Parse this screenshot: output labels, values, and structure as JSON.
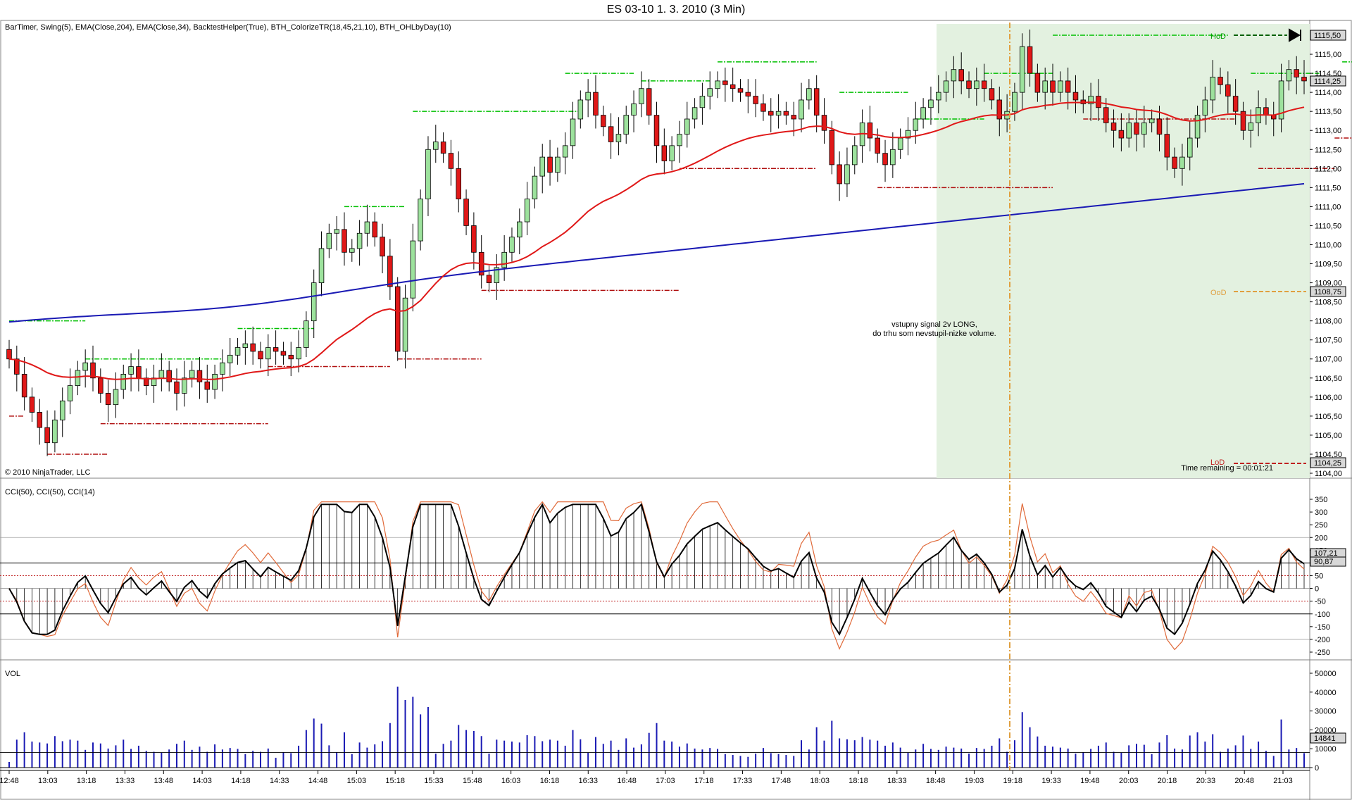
{
  "window": {
    "title": "ES 03-10  1. 3. 2010 (3 Min)"
  },
  "price_pane": {
    "indicators_label": "BarTimer, Swing(5), EMA(Close,204), EMA(Close,34), BacktestHelper(True), BTH_ColorizeTR(18,45,21,10), BTH_OHLbyDay(10)",
    "copyright": "© 2010 NinjaTrader, LLC",
    "annotation_line1": "vstupny signal 2v LONG,",
    "annotation_line2": "do trhu som nevstupil-nizke volume.",
    "time_remaining": "Time remaining = 00:01:21",
    "hod_label": "HoD",
    "ood_label": "OoD",
    "lod_label": "LoD",
    "last_price_box": "1114,25",
    "hod_price_box": "1115,50",
    "ood_price_box": "1108,75",
    "lod_price_box": "1104,25"
  },
  "cci_pane": {
    "label": "CCI(50), CCI(50), CCI(14)",
    "value_box_1": "107,21",
    "value_box_2": "90,87"
  },
  "vol_pane": {
    "label": "VOL",
    "value_box": "14841"
  },
  "colors": {
    "up_candle": "#9de29d",
    "down_candle": "#e01818",
    "ema204": "#1a1ab4",
    "ema34": "#e01818",
    "swing_high": "#00c000",
    "swing_low": "#b01010",
    "cci_main": "#000000",
    "cci_fast": "#e06a3a",
    "volume": "#1a1ab4",
    "session_shade": "#e3f1e0",
    "signal_line": "#e0a040"
  },
  "chart_data": {
    "type": "candlestick",
    "x_tick_labels": [
      "12:48",
      "13:03",
      "13:18",
      "13:33",
      "13:48",
      "14:03",
      "14:18",
      "14:33",
      "14:48",
      "15:03",
      "15:18",
      "15:33",
      "15:48",
      "16:03",
      "16:18",
      "16:33",
      "16:48",
      "17:03",
      "17:18",
      "17:33",
      "17:48",
      "18:03",
      "18:18",
      "18:33",
      "18:48",
      "19:03",
      "19:18",
      "19:33",
      "19:48",
      "20:03",
      "20:18",
      "20:33",
      "20:48",
      "21:03"
    ],
    "price_axis": {
      "min": 1104.0,
      "max": 1115.5,
      "ticks": [
        "1104,00",
        "1104,50",
        "1105,00",
        "1105,50",
        "1106,00",
        "1106,50",
        "1107,00",
        "1107,50",
        "1108,00",
        "1108,50",
        "1109,00",
        "1109,50",
        "1110,00",
        "1110,50",
        "1111,00",
        "1111,50",
        "1112,00",
        "1112,50",
        "1113,00",
        "1113,50",
        "1114,00",
        "1114,50",
        "1115,00"
      ]
    },
    "cci_axis": {
      "min": -250,
      "max": 350,
      "ticks": [
        "350",
        "300",
        "250",
        "200",
        "150",
        "100",
        "50",
        "0",
        "-50",
        "-100",
        "-150",
        "-200",
        "-250"
      ]
    },
    "vol_axis": {
      "min": 0,
      "max": 50000,
      "ticks": [
        "50000",
        "40000",
        "30000",
        "20000",
        "10000",
        "0"
      ]
    },
    "close": [
      1107.0,
      1106.6,
      1106.0,
      1105.6,
      1105.2,
      1104.8,
      1105.4,
      1105.9,
      1106.3,
      1106.7,
      1106.9,
      1106.5,
      1106.1,
      1105.8,
      1106.2,
      1106.6,
      1106.8,
      1106.5,
      1106.3,
      1106.5,
      1106.7,
      1106.4,
      1106.1,
      1106.5,
      1106.7,
      1106.4,
      1106.2,
      1106.6,
      1106.9,
      1107.1,
      1107.3,
      1107.4,
      1107.2,
      1107.0,
      1107.3,
      1107.2,
      1107.1,
      1107.0,
      1107.3,
      1108.0,
      1109.0,
      1109.9,
      1110.3,
      1110.4,
      1109.8,
      1109.9,
      1110.3,
      1110.6,
      1110.2,
      1109.7,
      1108.9,
      1107.2,
      1108.6,
      1110.1,
      1111.2,
      1112.5,
      1112.7,
      1112.4,
      1112.0,
      1111.2,
      1110.5,
      1109.8,
      1109.2,
      1109.0,
      1109.4,
      1109.8,
      1110.2,
      1110.6,
      1111.2,
      1111.8,
      1112.3,
      1111.9,
      1112.3,
      1112.6,
      1113.3,
      1113.8,
      1114.0,
      1113.4,
      1113.1,
      1112.7,
      1112.9,
      1113.4,
      1113.7,
      1114.1,
      1113.4,
      1112.6,
      1112.2,
      1112.6,
      1112.9,
      1113.3,
      1113.6,
      1113.9,
      1114.1,
      1114.3,
      1114.2,
      1114.1,
      1114.0,
      1113.9,
      1113.7,
      1113.5,
      1113.4,
      1113.5,
      1113.4,
      1113.3,
      1113.8,
      1114.1,
      1113.4,
      1113.0,
      1112.1,
      1111.6,
      1112.1,
      1112.6,
      1113.2,
      1112.8,
      1112.4,
      1112.1,
      1112.5,
      1112.8,
      1113.0,
      1113.3,
      1113.6,
      1113.8,
      1114.0,
      1114.3,
      1114.6,
      1114.3,
      1114.1,
      1114.3,
      1114.1,
      1113.8,
      1113.3,
      1113.5,
      1114.0,
      1115.2,
      1114.5,
      1114.0,
      1114.3,
      1114.0,
      1114.3,
      1114.0,
      1113.8,
      1113.7,
      1113.9,
      1113.6,
      1113.2,
      1113.0,
      1112.8,
      1113.2,
      1112.9,
      1113.2,
      1113.3,
      1112.9,
      1112.3,
      1112.0,
      1112.3,
      1112.8,
      1113.4,
      1113.8,
      1114.4,
      1114.2,
      1113.9,
      1113.5,
      1113.0,
      1113.2,
      1113.6,
      1113.4,
      1113.3,
      1114.3,
      1114.6,
      1114.4,
      1114.3
    ]
  }
}
